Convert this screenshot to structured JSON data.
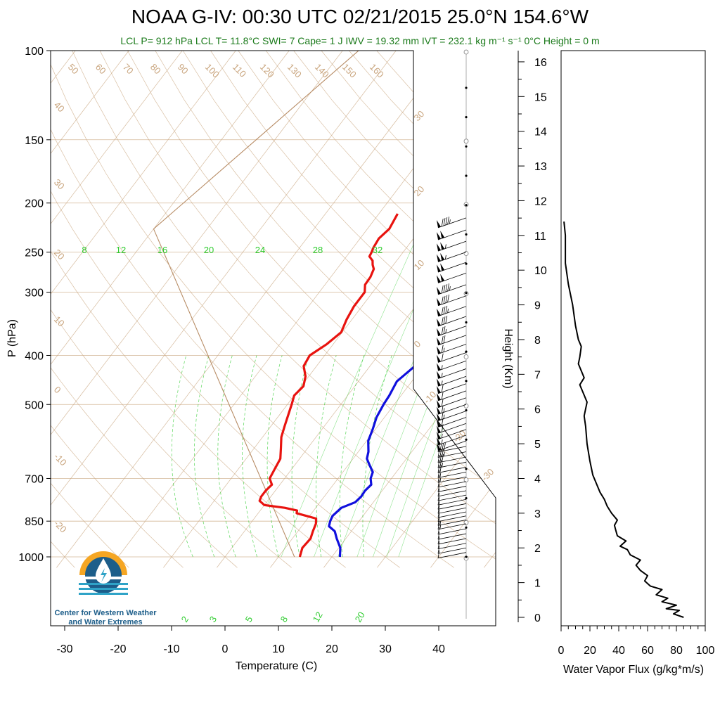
{
  "title_text": "NOAA G-IV: 00:30 UTC 02/21/2015  25.0°N 154.6°W",
  "subtitle_text": "LCL P= 912 hPa  LCL T= 11.8°C  SWI= 7  Cape= 1 J  IWV = 19.32 mm  IVT = 232.1 kg m⁻¹ s⁻¹  0°C Height = 0 m",
  "logo": {
    "icon": "water-drop-logo-icon",
    "line1": "Center for Western Weather",
    "line2": "and Water Extremes",
    "colors": {
      "sun": "#f5a623",
      "water": "#1d5e8a",
      "accent": "#2fa3c7"
    }
  },
  "colors": {
    "temperature": "#e8130f",
    "dewpoint": "#1010dd",
    "isotherm": "#c9a57e",
    "dry_adiabat": "#c9a57e",
    "mixing_ratio": "#2ecc2e",
    "moist_adiabat": "#2ecc2e",
    "wind": "#000000",
    "flux": "#000000"
  },
  "chart_data": [
    {
      "type": "line",
      "subtype": "skew-t log-p",
      "xlabel": "Temperature (C)",
      "ylabel": "P (hPa)",
      "x_ticks": [
        -30,
        -20,
        -10,
        0,
        10,
        20,
        30,
        40
      ],
      "y_ticks": [
        100,
        150,
        200,
        250,
        300,
        400,
        500,
        700,
        850,
        1000
      ],
      "xlim": [
        -34,
        44
      ],
      "ylim": [
        1050,
        100
      ],
      "y_scale": "log",
      "isotherm_labels": [
        50,
        60,
        70,
        80,
        90,
        100,
        110,
        120,
        130,
        140,
        150,
        160
      ],
      "side_labels_left": [
        40,
        30,
        20,
        10,
        0,
        -10,
        -20
      ],
      "side_labels_right": [
        30,
        20,
        10,
        0,
        -10,
        -20,
        -30
      ],
      "mixing_ratio_labels": [
        8,
        12,
        16,
        20,
        24,
        28,
        32
      ],
      "moist_labels": [
        2,
        3,
        5,
        8,
        12,
        20
      ],
      "series": [
        {
          "name": "Temperature",
          "x": [
            14.0,
            13.2,
            13.4,
            12.8,
            12.3,
            11.6,
            9.4,
            7.2,
            6.9,
            4.2,
            0.0,
            -1.5,
            -1.8,
            -1.8,
            -1.5,
            -2.8,
            -3.2,
            -3.6,
            -5.0,
            -6.5,
            -7.5,
            -8.5,
            -9.2,
            -10.0,
            -9.6,
            -10.6,
            -12.4,
            -12.8,
            -11.2,
            -10.2,
            -11.0,
            -11.5,
            -11.5,
            -12.5,
            -12.6,
            -13.1,
            -13.9,
            -14.5,
            -15.7,
            -15.9,
            -16.2,
            -16.5,
            -15.9,
            -16.5
          ],
          "y": [
            1000,
            960,
            920,
            890,
            860,
            840,
            830,
            820,
            810,
            800,
            790,
            775,
            760,
            740,
            720,
            700,
            670,
            640,
            610,
            580,
            550,
            520,
            500,
            480,
            460,
            440,
            420,
            400,
            380,
            360,
            340,
            320,
            300,
            290,
            280,
            270,
            265,
            260,
            255,
            250,
            245,
            235,
            225,
            210
          ]
        },
        {
          "name": "Dewpoint",
          "x": [
            21.5,
            20.3,
            18.3,
            16.9,
            15.1,
            14.6,
            14.3,
            14.8,
            16.6,
            16.9,
            16.8,
            17.1,
            16.1,
            15.6,
            14.1,
            12.6,
            11.9,
            10.3,
            9.5,
            8.5,
            8.0,
            7.8,
            7.2,
            8.4,
            9.8,
            10.2,
            9.6,
            8.2,
            7.7,
            6.8,
            6.5,
            5.4,
            4.7,
            3.7,
            2.6,
            2.3,
            2.6,
            3.7,
            5.1,
            5.2,
            3.7,
            1.9
          ],
          "y": [
            1000,
            960,
            920,
            890,
            870,
            850,
            830,
            800,
            780,
            760,
            740,
            720,
            700,
            680,
            660,
            640,
            620,
            590,
            560,
            530,
            500,
            480,
            450,
            420,
            400,
            380,
            370,
            350,
            340,
            325,
            310,
            300,
            290,
            280,
            270,
            260,
            255,
            250,
            245,
            240,
            230,
            210
          ]
        }
      ]
    },
    {
      "type": "line",
      "xlabel": "Water Vapor Flux (g/kg*m/s)",
      "ylabel": "Height (Km)",
      "x_ticks": [
        0,
        20,
        40,
        60,
        80,
        100
      ],
      "y_ticks": [
        0,
        1,
        2,
        3,
        4,
        5,
        6,
        7,
        8,
        9,
        10,
        11,
        12,
        13,
        14,
        15,
        16
      ],
      "xlim": [
        0,
        100
      ],
      "ylim": [
        0,
        16.3
      ],
      "series": [
        {
          "name": "Water Vapor Flux",
          "x": [
            85,
            78,
            82,
            73,
            80,
            70,
            74,
            66,
            70,
            62,
            58,
            60,
            55,
            52,
            55,
            48,
            46,
            41,
            45,
            39,
            38,
            37,
            39,
            35,
            32,
            30,
            27,
            25,
            22,
            20,
            18,
            17,
            16,
            18,
            16,
            13,
            16,
            14,
            12,
            13,
            14,
            12,
            10,
            8,
            5,
            3,
            3,
            3,
            2
          ],
          "y": [
            0.0,
            0.1,
            0.2,
            0.25,
            0.35,
            0.45,
            0.55,
            0.65,
            0.8,
            0.9,
            1.05,
            1.2,
            1.35,
            1.5,
            1.65,
            1.8,
            1.95,
            2.05,
            2.2,
            2.35,
            2.5,
            2.65,
            2.8,
            3.0,
            3.2,
            3.4,
            3.6,
            3.8,
            4.1,
            4.5,
            5.0,
            5.5,
            5.8,
            6.2,
            6.4,
            6.7,
            6.9,
            7.1,
            7.3,
            7.5,
            7.8,
            8.0,
            8.4,
            9.0,
            9.6,
            10.2,
            10.6,
            11.0,
            11.4
          ]
        }
      ]
    }
  ],
  "winds": {
    "barb_count_note": "wind barbs along right side of skew-T",
    "pressures": [
      980,
      960,
      940,
      920,
      900,
      880,
      860,
      845,
      830,
      815,
      800,
      785,
      770,
      755,
      740,
      725,
      710,
      695,
      680,
      665,
      650,
      635,
      620,
      605,
      590,
      575,
      560,
      545,
      530,
      515,
      500,
      485,
      470,
      455,
      440,
      425,
      410,
      395,
      380,
      365,
      350,
      335,
      320,
      305,
      290,
      275,
      262,
      250,
      238,
      226,
      214
    ],
    "speeds_kt": [
      10,
      10,
      12,
      12,
      10,
      10,
      15,
      15,
      12,
      10,
      10,
      10,
      12,
      10,
      10,
      12,
      12,
      15,
      15,
      20,
      25,
      30,
      35,
      40,
      50,
      55,
      55,
      60,
      60,
      65,
      65,
      60,
      60,
      60,
      55,
      55,
      55,
      60,
      65,
      70,
      75,
      80,
      85,
      90,
      95,
      100,
      100,
      105,
      105,
      100,
      95
    ]
  }
}
